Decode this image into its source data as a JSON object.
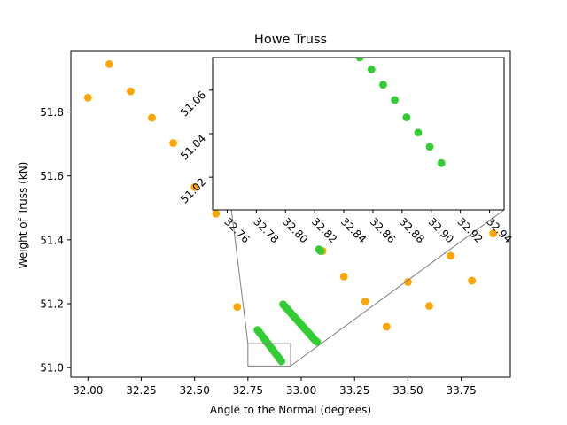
{
  "chart_data": {
    "type": "scatter",
    "title": "Howe Truss",
    "xlabel": "Angle to the Normal (degrees)",
    "ylabel": "Weight of Truss (kN)",
    "xlim": [
      31.92,
      33.98
    ],
    "ylim": [
      50.97,
      51.99
    ],
    "xticks": [
      32.0,
      32.25,
      32.5,
      32.75,
      33.0,
      33.25,
      33.5,
      33.75
    ],
    "xtick_labels": [
      "32.00",
      "32.25",
      "32.50",
      "32.75",
      "33.00",
      "33.25",
      "33.50",
      "33.75"
    ],
    "yticks": [
      51.0,
      51.2,
      51.4,
      51.6,
      51.8
    ],
    "ytick_labels": [
      "51.0",
      "51.2",
      "51.4",
      "51.6",
      "51.8"
    ],
    "grid": false,
    "series": [
      {
        "color": "#ffa500",
        "x": [
          32.0,
          32.1,
          32.2,
          32.3,
          32.4,
          32.5,
          32.6,
          32.7,
          33.1,
          33.2,
          33.3,
          33.4,
          33.5,
          33.6,
          33.7,
          33.8,
          33.9
        ],
        "y": [
          51.845,
          51.95,
          51.865,
          51.782,
          51.703,
          51.565,
          51.482,
          51.19,
          51.365,
          51.285,
          51.207,
          51.128,
          51.268,
          51.193,
          51.35,
          51.272,
          51.42
        ]
      },
      {
        "color": "#32cd32",
        "x": [
          32.795,
          32.803,
          32.811,
          32.819,
          32.827,
          32.835,
          32.843,
          32.851,
          32.859,
          32.867,
          32.875,
          32.883,
          32.891,
          32.899,
          32.907,
          32.915,
          32.923,
          32.931,
          32.939,
          32.947,
          32.955,
          32.963,
          32.971,
          32.979,
          32.987,
          32.995,
          33.003,
          33.011,
          33.019,
          33.027,
          33.035,
          33.043,
          33.051,
          33.059,
          33.067,
          33.075,
          33.083,
          33.09
        ],
        "y": [
          51.118,
          51.111,
          51.104,
          51.097,
          51.09,
          51.083,
          51.076,
          51.069,
          51.062,
          51.055,
          51.048,
          51.041,
          51.034,
          51.027,
          51.02,
          51.198,
          51.192,
          51.186,
          51.18,
          51.174,
          51.168,
          51.162,
          51.156,
          51.15,
          51.144,
          51.138,
          51.132,
          51.126,
          51.12,
          51.114,
          51.108,
          51.102,
          51.096,
          51.09,
          51.084,
          51.08,
          51.37,
          51.365
        ]
      }
    ],
    "inset": {
      "xlim": [
        32.75,
        32.95
      ],
      "ylim": [
        51.005,
        51.075
      ],
      "xticks": [
        32.76,
        32.78,
        32.8,
        32.82,
        32.84,
        32.86,
        32.88,
        32.9,
        32.92,
        32.94
      ],
      "xtick_labels": [
        "32.76",
        "32.78",
        "32.80",
        "32.82",
        "32.84",
        "32.86",
        "32.88",
        "32.90",
        "32.92",
        "32.94"
      ],
      "yticks": [
        51.02,
        51.04,
        51.06
      ],
      "ytick_labels": [
        "51.02",
        "51.04",
        "51.06"
      ],
      "points": {
        "color": "#32cd32",
        "x": [
          32.851,
          32.859,
          32.867,
          32.875,
          32.883,
          32.891,
          32.899,
          32.907
        ],
        "y": [
          51.075,
          51.0695,
          51.0625,
          51.0555,
          51.0475,
          51.0405,
          51.034,
          51.0265
        ]
      }
    }
  }
}
